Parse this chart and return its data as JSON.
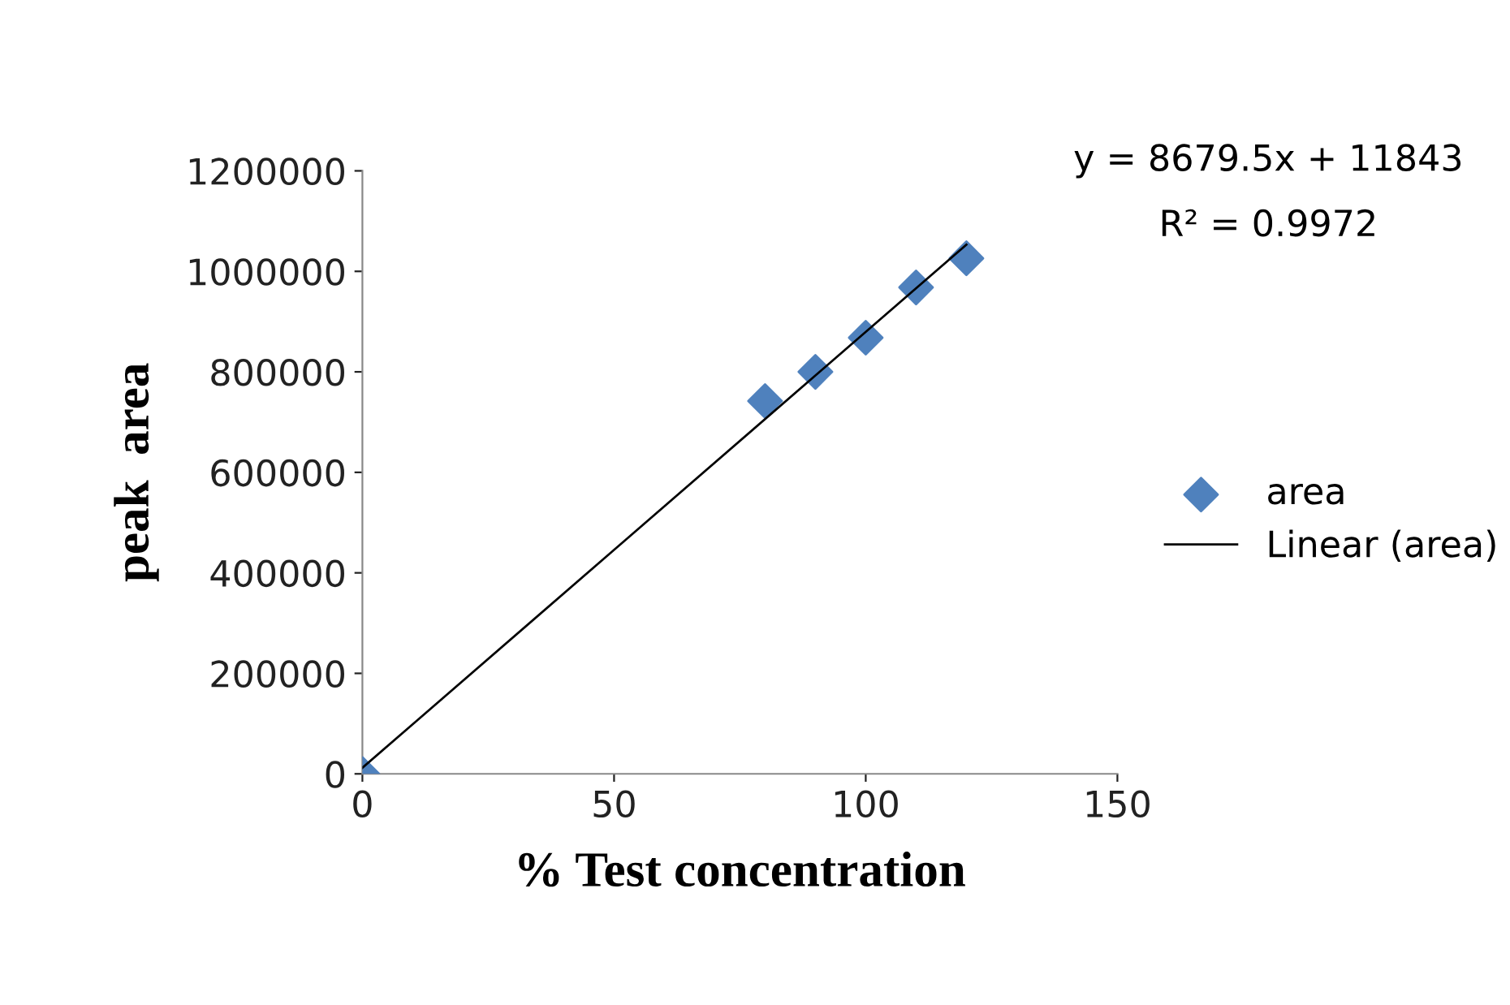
{
  "chart_data": {
    "type": "scatter",
    "xlabel": "% Test concentration",
    "ylabel": "peak  area",
    "series": [
      {
        "name": "area",
        "color": "#4f81bd",
        "marker": "diamond",
        "x": [
          0,
          80,
          90,
          100,
          110,
          120
        ],
        "values": [
          0,
          742000,
          800000,
          868000,
          968000,
          1026000
        ]
      },
      {
        "name": "Linear (area)",
        "type": "line",
        "color": "#000000",
        "marker": "none",
        "line_style": "solid",
        "x": [
          0,
          120
        ],
        "values": [
          12000,
          1053000
        ]
      }
    ],
    "xlim": [
      0,
      150
    ],
    "xticks": [
      0,
      50,
      100,
      150
    ],
    "ylim": [
      0,
      1200000
    ],
    "yticks": [
      0,
      200000,
      400000,
      600000,
      800000,
      1000000,
      1200000
    ],
    "grid": false,
    "legend": "right",
    "annotations": [
      "y = 8679.5x + 11843",
      "R² = 0.9972"
    ]
  }
}
